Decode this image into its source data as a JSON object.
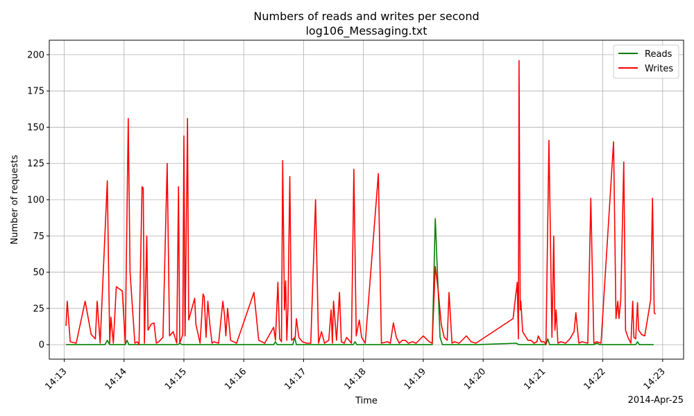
{
  "chart_data": {
    "type": "line",
    "title": "Numbers of reads and writes per second",
    "subtitle": "log106_Messaging.txt",
    "xlabel": "Time",
    "ylabel": "Number of requests",
    "date_label": "2014-Apr-25",
    "x_unit": "minutes after 14:13",
    "xlim": [
      -0.25,
      10.35
    ],
    "ylim": [
      -10,
      210
    ],
    "yticks": [
      0,
      25,
      50,
      75,
      100,
      125,
      150,
      175,
      200
    ],
    "xticks": [
      {
        "value": 0,
        "label": "14:13"
      },
      {
        "value": 1,
        "label": "14:14"
      },
      {
        "value": 2,
        "label": "14:15"
      },
      {
        "value": 3,
        "label": "14:16"
      },
      {
        "value": 4,
        "label": "14:17"
      },
      {
        "value": 5,
        "label": "14:18"
      },
      {
        "value": 6,
        "label": "14:19"
      },
      {
        "value": 7,
        "label": "14:20"
      },
      {
        "value": 8,
        "label": "14:21"
      },
      {
        "value": 9,
        "label": "14:22"
      },
      {
        "value": 10,
        "label": "14:23"
      }
    ],
    "grid": true,
    "legend_position": "top-right",
    "series": [
      {
        "name": "Reads",
        "color": "#008000",
        "points": [
          [
            0.03,
            0
          ],
          [
            0.68,
            0
          ],
          [
            0.72,
            3
          ],
          [
            0.76,
            0
          ],
          [
            1.02,
            0
          ],
          [
            1.05,
            3
          ],
          [
            1.08,
            0
          ],
          [
            1.9,
            0
          ],
          [
            1.93,
            1
          ],
          [
            1.97,
            0
          ],
          [
            3.5,
            0
          ],
          [
            3.53,
            2
          ],
          [
            3.56,
            0
          ],
          [
            3.82,
            0
          ],
          [
            3.85,
            5
          ],
          [
            3.88,
            0
          ],
          [
            4.3,
            0
          ],
          [
            4.4,
            0
          ],
          [
            4.83,
            0
          ],
          [
            4.86,
            2
          ],
          [
            4.89,
            0
          ],
          [
            6.15,
            0
          ],
          [
            6.2,
            87
          ],
          [
            6.28,
            5
          ],
          [
            6.32,
            0
          ],
          [
            6.9,
            0
          ],
          [
            7.55,
            1
          ],
          [
            7.6,
            0
          ],
          [
            8.05,
            0
          ],
          [
            8.08,
            4
          ],
          [
            8.11,
            0
          ],
          [
            8.85,
            0
          ],
          [
            8.9,
            1
          ],
          [
            8.95,
            0
          ],
          [
            9.55,
            0
          ],
          [
            9.58,
            2
          ],
          [
            9.61,
            0
          ],
          [
            9.85,
            0
          ]
        ]
      },
      {
        "name": "Writes",
        "color": "#ff0000",
        "points": [
          [
            0.03,
            13
          ],
          [
            0.05,
            30
          ],
          [
            0.1,
            2
          ],
          [
            0.2,
            1
          ],
          [
            0.35,
            30
          ],
          [
            0.45,
            7
          ],
          [
            0.52,
            4
          ],
          [
            0.55,
            30
          ],
          [
            0.6,
            1
          ],
          [
            0.72,
            113
          ],
          [
            0.76,
            1
          ],
          [
            0.78,
            19
          ],
          [
            0.82,
            1
          ],
          [
            0.87,
            40
          ],
          [
            0.97,
            37
          ],
          [
            1.02,
            1
          ],
          [
            1.07,
            156
          ],
          [
            1.1,
            50
          ],
          [
            1.18,
            1
          ],
          [
            1.22,
            2
          ],
          [
            1.25,
            0
          ],
          [
            1.3,
            109
          ],
          [
            1.32,
            108
          ],
          [
            1.34,
            1
          ],
          [
            1.38,
            75
          ],
          [
            1.4,
            10
          ],
          [
            1.45,
            14
          ],
          [
            1.5,
            15
          ],
          [
            1.54,
            1
          ],
          [
            1.58,
            2
          ],
          [
            1.65,
            5
          ],
          [
            1.72,
            125
          ],
          [
            1.76,
            6
          ],
          [
            1.82,
            9
          ],
          [
            1.88,
            1
          ],
          [
            1.91,
            109
          ],
          [
            1.93,
            1
          ],
          [
            1.98,
            7
          ],
          [
            2.0,
            144
          ],
          [
            2.02,
            6
          ],
          [
            2.06,
            156
          ],
          [
            2.08,
            17
          ],
          [
            2.18,
            32
          ],
          [
            2.2,
            14
          ],
          [
            2.27,
            1
          ],
          [
            2.32,
            35
          ],
          [
            2.34,
            33
          ],
          [
            2.37,
            5
          ],
          [
            2.4,
            30
          ],
          [
            2.43,
            15
          ],
          [
            2.47,
            1
          ],
          [
            2.5,
            2
          ],
          [
            2.58,
            1
          ],
          [
            2.65,
            30
          ],
          [
            2.68,
            20
          ],
          [
            2.7,
            6
          ],
          [
            2.73,
            25
          ],
          [
            2.78,
            3
          ],
          [
            2.88,
            1
          ],
          [
            3.17,
            36
          ],
          [
            3.25,
            3
          ],
          [
            3.35,
            1
          ],
          [
            3.5,
            12
          ],
          [
            3.53,
            3
          ],
          [
            3.57,
            43
          ],
          [
            3.6,
            4
          ],
          [
            3.63,
            2
          ],
          [
            3.65,
            127
          ],
          [
            3.68,
            24
          ],
          [
            3.7,
            44
          ],
          [
            3.72,
            3
          ],
          [
            3.74,
            26
          ],
          [
            3.77,
            116
          ],
          [
            3.8,
            3
          ],
          [
            3.86,
            5
          ],
          [
            3.88,
            18
          ],
          [
            3.92,
            5
          ],
          [
            3.98,
            2
          ],
          [
            4.05,
            1
          ],
          [
            4.12,
            1
          ],
          [
            4.2,
            100
          ],
          [
            4.25,
            1
          ],
          [
            4.3,
            9
          ],
          [
            4.35,
            1
          ],
          [
            4.42,
            3
          ],
          [
            4.46,
            24
          ],
          [
            4.48,
            1
          ],
          [
            4.5,
            30
          ],
          [
            4.55,
            3
          ],
          [
            4.6,
            36
          ],
          [
            4.63,
            2
          ],
          [
            4.68,
            1
          ],
          [
            4.72,
            5
          ],
          [
            4.8,
            1
          ],
          [
            4.84,
            121
          ],
          [
            4.88,
            6
          ],
          [
            4.93,
            17
          ],
          [
            4.97,
            5
          ],
          [
            5.03,
            1
          ],
          [
            5.25,
            118
          ],
          [
            5.3,
            1
          ],
          [
            5.4,
            2
          ],
          [
            5.45,
            1
          ],
          [
            5.5,
            15
          ],
          [
            5.55,
            5
          ],
          [
            5.6,
            1
          ],
          [
            5.65,
            3
          ],
          [
            5.7,
            3
          ],
          [
            5.75,
            1
          ],
          [
            5.82,
            2
          ],
          [
            5.88,
            1
          ],
          [
            6.0,
            6
          ],
          [
            6.1,
            2
          ],
          [
            6.15,
            1
          ],
          [
            6.2,
            54
          ],
          [
            6.25,
            37
          ],
          [
            6.3,
            14
          ],
          [
            6.35,
            5
          ],
          [
            6.4,
            3
          ],
          [
            6.43,
            36
          ],
          [
            6.48,
            1
          ],
          [
            6.52,
            2
          ],
          [
            6.6,
            1
          ],
          [
            6.72,
            6
          ],
          [
            6.8,
            2
          ],
          [
            6.88,
            1
          ],
          [
            7.5,
            18
          ],
          [
            7.57,
            43
          ],
          [
            7.59,
            4
          ],
          [
            7.6,
            196
          ],
          [
            7.62,
            24
          ],
          [
            7.63,
            30
          ],
          [
            7.66,
            9
          ],
          [
            7.75,
            3
          ],
          [
            7.8,
            3
          ],
          [
            7.85,
            1
          ],
          [
            7.9,
            2
          ],
          [
            7.92,
            6
          ],
          [
            7.97,
            2
          ],
          [
            8.02,
            2
          ],
          [
            8.05,
            0
          ],
          [
            8.1,
            141
          ],
          [
            8.15,
            5
          ],
          [
            8.18,
            75
          ],
          [
            8.2,
            10
          ],
          [
            8.22,
            24
          ],
          [
            8.25,
            1
          ],
          [
            8.3,
            2
          ],
          [
            8.38,
            1
          ],
          [
            8.45,
            4
          ],
          [
            8.52,
            9
          ],
          [
            8.55,
            22
          ],
          [
            8.6,
            1
          ],
          [
            8.65,
            2
          ],
          [
            8.75,
            1
          ],
          [
            8.8,
            101
          ],
          [
            8.85,
            1
          ],
          [
            8.9,
            2
          ],
          [
            8.97,
            1
          ],
          [
            9.18,
            140
          ],
          [
            9.22,
            18
          ],
          [
            9.25,
            30
          ],
          [
            9.27,
            18
          ],
          [
            9.3,
            31
          ],
          [
            9.35,
            126
          ],
          [
            9.38,
            10
          ],
          [
            9.42,
            5
          ],
          [
            9.47,
            1
          ],
          [
            9.5,
            30
          ],
          [
            9.52,
            5
          ],
          [
            9.55,
            4
          ],
          [
            9.58,
            29
          ],
          [
            9.6,
            10
          ],
          [
            9.65,
            7
          ],
          [
            9.7,
            6
          ],
          [
            9.8,
            31
          ],
          [
            9.83,
            101
          ],
          [
            9.86,
            22
          ],
          [
            9.88,
            21
          ]
        ]
      }
    ]
  }
}
